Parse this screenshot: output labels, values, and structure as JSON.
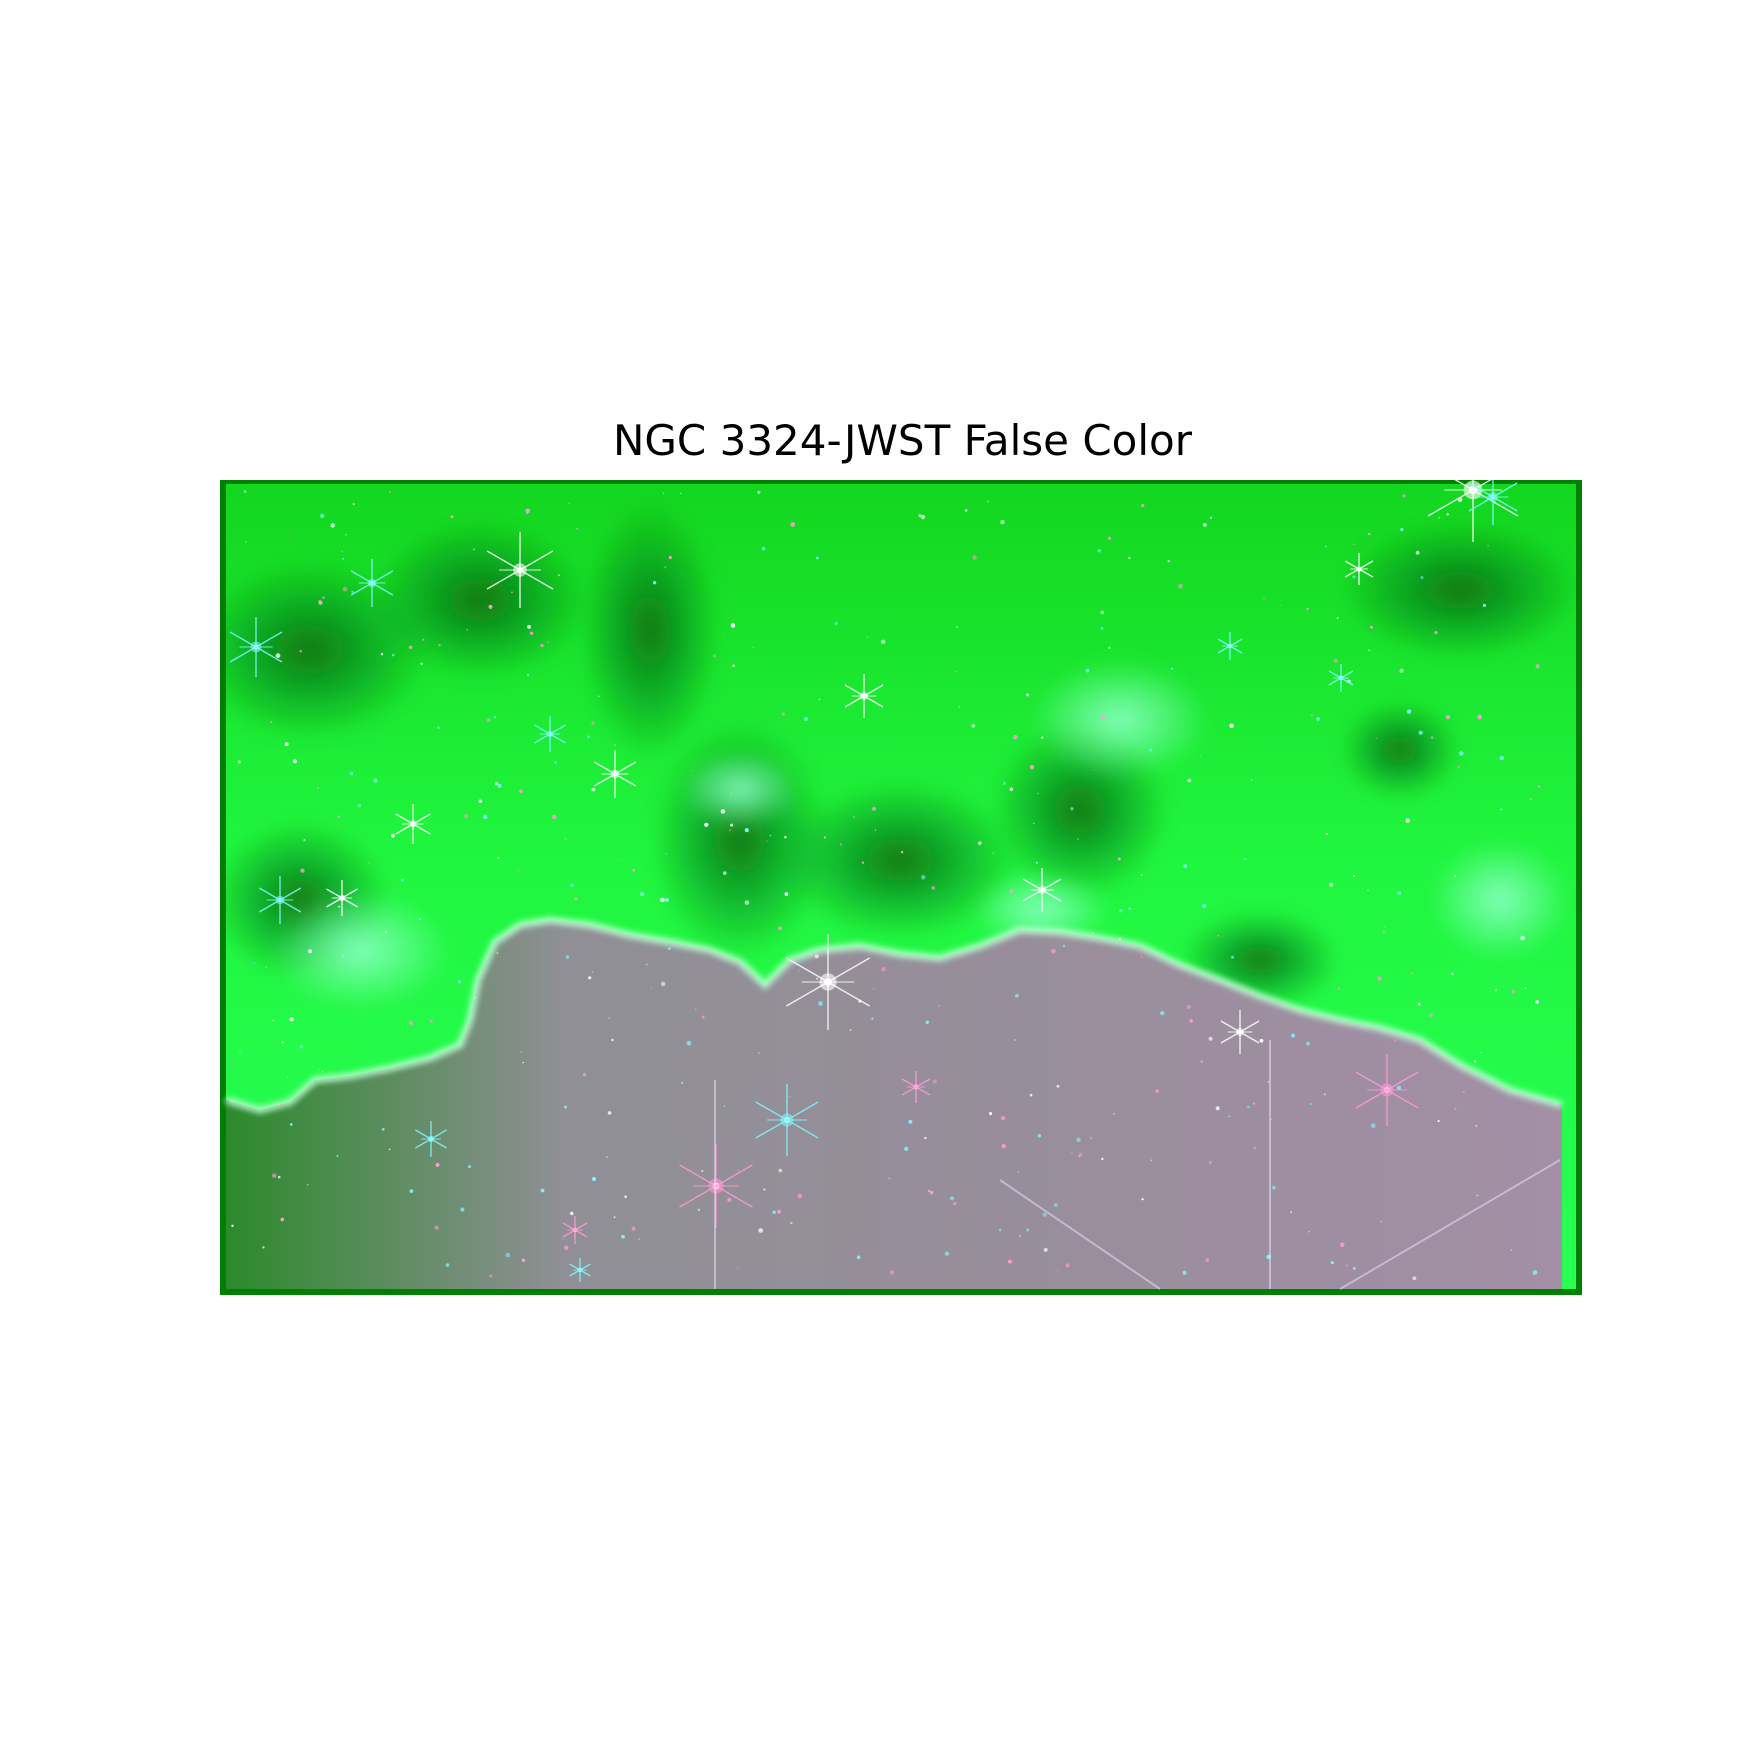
{
  "figure": {
    "title": "NGC 3324-JWST False Color"
  },
  "image": {
    "subject": "false-color nebula image with cloud ridge and starfield",
    "colors": {
      "frame_border": "#008000",
      "nebula_bright": "#22ff4a",
      "nebula_mid": "#14c81e",
      "nebula_dark": "#0a7a14",
      "lower_region": "#8f8f9a",
      "lower_region_pink": "#a78aa8",
      "star_white": "#ffffff",
      "star_cyan": "#7ff7ff",
      "star_pink": "#ff9ad6"
    }
  }
}
